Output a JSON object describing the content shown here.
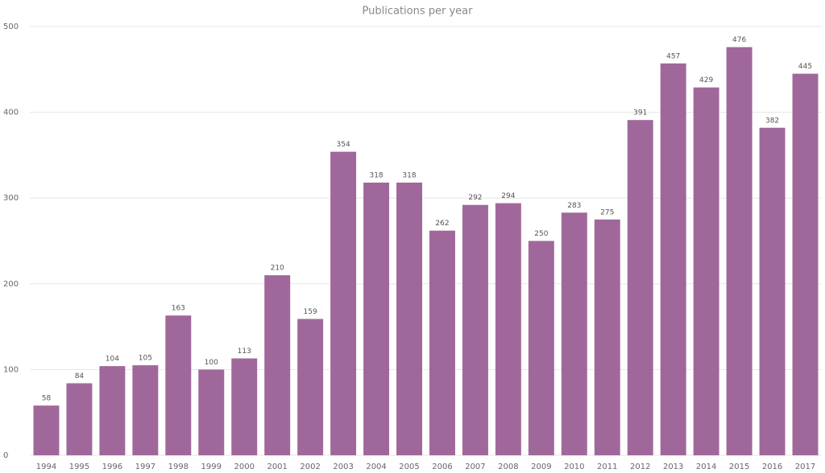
{
  "chart_data": {
    "type": "bar",
    "title": "Publications per year",
    "categories": [
      "1994",
      "1995",
      "1996",
      "1997",
      "1998",
      "1999",
      "2000",
      "2001",
      "2002",
      "2003",
      "2004",
      "2005",
      "2006",
      "2007",
      "2008",
      "2009",
      "2010",
      "2011",
      "2012",
      "2013",
      "2014",
      "2015",
      "2016",
      "2017"
    ],
    "values": [
      58,
      84,
      104,
      105,
      163,
      100,
      113,
      210,
      159,
      354,
      318,
      318,
      262,
      292,
      294,
      250,
      283,
      275,
      391,
      457,
      429,
      476,
      382,
      445
    ],
    "color": "#a0689a",
    "ylim": [
      0,
      500
    ],
    "yticks": [
      0,
      100,
      200,
      300,
      400,
      500
    ],
    "grid": true
  }
}
